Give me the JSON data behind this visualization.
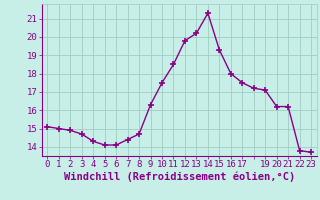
{
  "x": [
    0,
    1,
    2,
    3,
    4,
    5,
    6,
    7,
    8,
    9,
    10,
    11,
    12,
    13,
    14,
    15,
    16,
    17,
    18,
    19,
    20,
    21,
    22,
    23
  ],
  "y": [
    15.1,
    15.0,
    14.9,
    14.7,
    14.3,
    14.1,
    14.1,
    14.4,
    14.7,
    16.3,
    17.5,
    18.5,
    19.8,
    20.2,
    21.3,
    19.3,
    18.0,
    17.5,
    17.2,
    17.1,
    16.2,
    16.2,
    13.8,
    13.7
  ],
  "line_color": "#880088",
  "marker": "+",
  "background_color": "#c8eee8",
  "grid_color": "#a0ccc0",
  "axis_color": "#880088",
  "xlabel": "Windchill (Refroidissement éolien,°C)",
  "ylabel": "",
  "xlim": [
    -0.5,
    23.5
  ],
  "ylim": [
    13.5,
    21.8
  ],
  "yticks": [
    14,
    15,
    16,
    17,
    18,
    19,
    20,
    21
  ],
  "xticks": [
    0,
    1,
    2,
    3,
    4,
    5,
    6,
    7,
    8,
    9,
    10,
    11,
    12,
    13,
    14,
    15,
    16,
    17,
    19,
    20,
    21,
    22,
    23
  ],
  "tick_label_color": "#880088",
  "font_size": 6.5,
  "xlabel_font_size": 7.5,
  "linewidth": 1.0,
  "markersize": 4
}
